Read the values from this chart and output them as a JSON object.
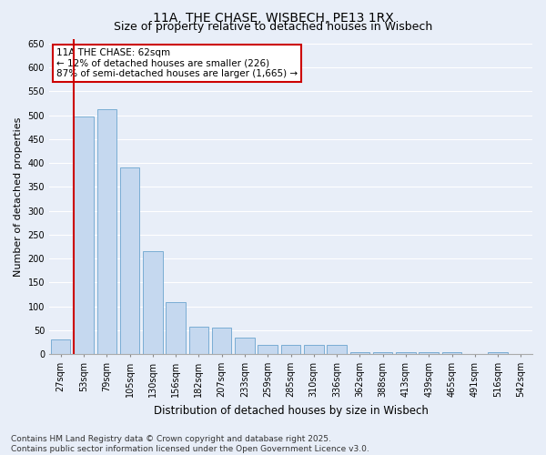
{
  "title": "11A, THE CHASE, WISBECH, PE13 1RX",
  "subtitle": "Size of property relative to detached houses in Wisbech",
  "xlabel": "Distribution of detached houses by size in Wisbech",
  "ylabel": "Number of detached properties",
  "categories": [
    "27sqm",
    "53sqm",
    "79sqm",
    "105sqm",
    "130sqm",
    "156sqm",
    "182sqm",
    "207sqm",
    "233sqm",
    "259sqm",
    "285sqm",
    "310sqm",
    "336sqm",
    "362sqm",
    "388sqm",
    "413sqm",
    "439sqm",
    "465sqm",
    "491sqm",
    "516sqm",
    "542sqm"
  ],
  "values": [
    30,
    498,
    512,
    390,
    215,
    108,
    57,
    55,
    35,
    20,
    20,
    20,
    20,
    5,
    5,
    5,
    5,
    5,
    1,
    5,
    1
  ],
  "bar_color": "#c5d8ef",
  "bar_edge_color": "#7aadd4",
  "bar_linewidth": 0.7,
  "ylim": [
    0,
    660
  ],
  "yticks": [
    0,
    50,
    100,
    150,
    200,
    250,
    300,
    350,
    400,
    450,
    500,
    550,
    600,
    650
  ],
  "bg_color": "#e8eef8",
  "plot_bg_color": "#e8eef8",
  "grid_color": "#ffffff",
  "annotation_line1": "11A THE CHASE: 62sqm",
  "annotation_line2": "← 12% of detached houses are smaller (226)",
  "annotation_line3": "87% of semi-detached houses are larger (1,665) →",
  "annotation_box_color": "#cc0000",
  "red_line_color": "#cc0000",
  "footer_line1": "Contains HM Land Registry data © Crown copyright and database right 2025.",
  "footer_line2": "Contains public sector information licensed under the Open Government Licence v3.0.",
  "title_fontsize": 10,
  "subtitle_fontsize": 9,
  "xlabel_fontsize": 8.5,
  "ylabel_fontsize": 8,
  "tick_fontsize": 7,
  "annotation_fontsize": 7.5,
  "footer_fontsize": 6.5
}
